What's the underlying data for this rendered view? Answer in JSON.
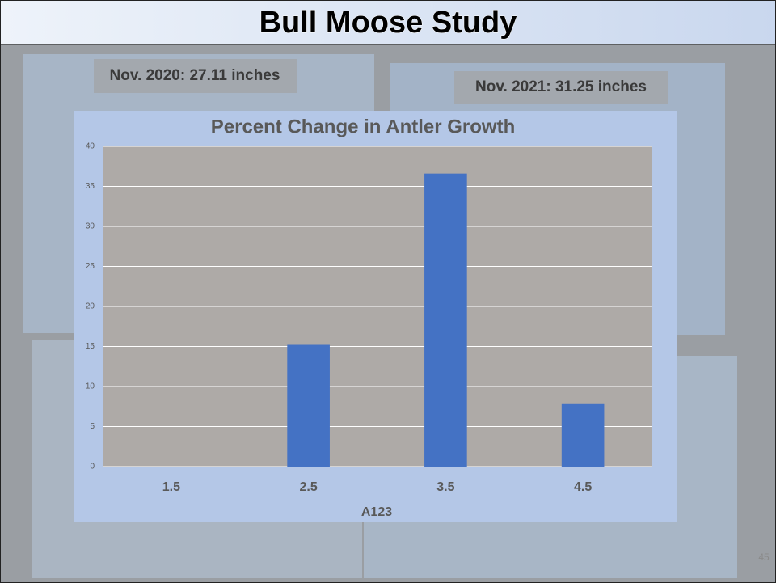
{
  "slide": {
    "title": "Bull Moose Study",
    "caption_left": "Nov. 2020: 27.11 inches",
    "caption_right": "Nov. 2021: 31.25 inches",
    "page_number": "45"
  },
  "chart_data": {
    "type": "bar",
    "title": "Percent Change in Antler Growth",
    "x_label": "A123",
    "categories": [
      "1.5",
      "2.5",
      "3.5",
      "4.5"
    ],
    "values": [
      0,
      15.2,
      36.6,
      7.8
    ],
    "color": "#4472c4",
    "ylim": [
      0,
      40
    ],
    "yticks": [
      0,
      5,
      10,
      15,
      20,
      25,
      30,
      35,
      40
    ],
    "grid": true
  }
}
